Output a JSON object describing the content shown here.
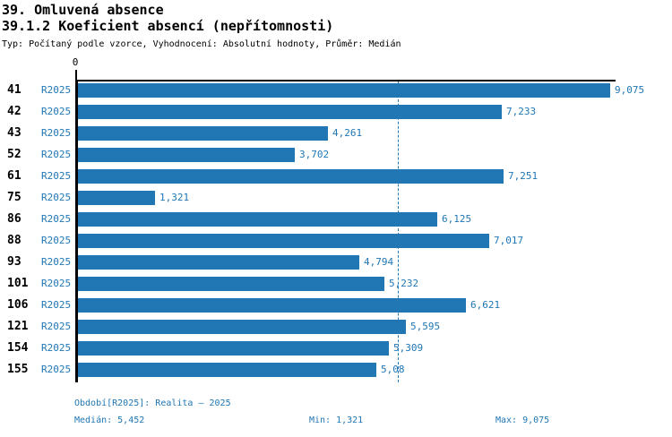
{
  "header": {
    "title1": "39. Omluvená absence",
    "title2": "39.1.2 Koeficient absencí (nepřítomnosti)",
    "subtitle": "Typ: Počítaný podle vzorce, Vyhodnocení: Absolutní hodnoty, Průměr: Medián"
  },
  "chart_data": {
    "type": "bar",
    "orientation": "horizontal",
    "title": "39.1.2 Koeficient absencí (nepřítomnosti)",
    "categories": [
      "41",
      "42",
      "43",
      "52",
      "61",
      "75",
      "86",
      "88",
      "93",
      "101",
      "106",
      "121",
      "154",
      "155"
    ],
    "series_label": "R2025",
    "values": [
      9.075,
      7.233,
      4.261,
      3.702,
      7.251,
      1.321,
      6.125,
      7.017,
      4.794,
      5.232,
      6.621,
      5.595,
      5.309,
      5.08
    ],
    "value_labels": [
      "9,075",
      "7,233",
      "4,261",
      "3,702",
      "7,251",
      "1,321",
      "6,125",
      "7,017",
      "4,794",
      "5,232",
      "6,621",
      "5,595",
      "5,309",
      "5,08"
    ],
    "axis_zero_label": "0",
    "xlim": [
      0,
      9.075
    ],
    "median_value": 5.452,
    "grid": false,
    "legend": "none",
    "bar_color": "#2077b4",
    "median_line_color": "#2077b4"
  },
  "footer": {
    "period": "Období[R2025]: Realita – 2025",
    "median": "Medián: 5,452",
    "min": "Min: 1,321",
    "max": "Max: 9,075"
  },
  "colors": {
    "accent_blue": "#2077b4",
    "axis_black": "#000000",
    "background": "#ffffff"
  }
}
